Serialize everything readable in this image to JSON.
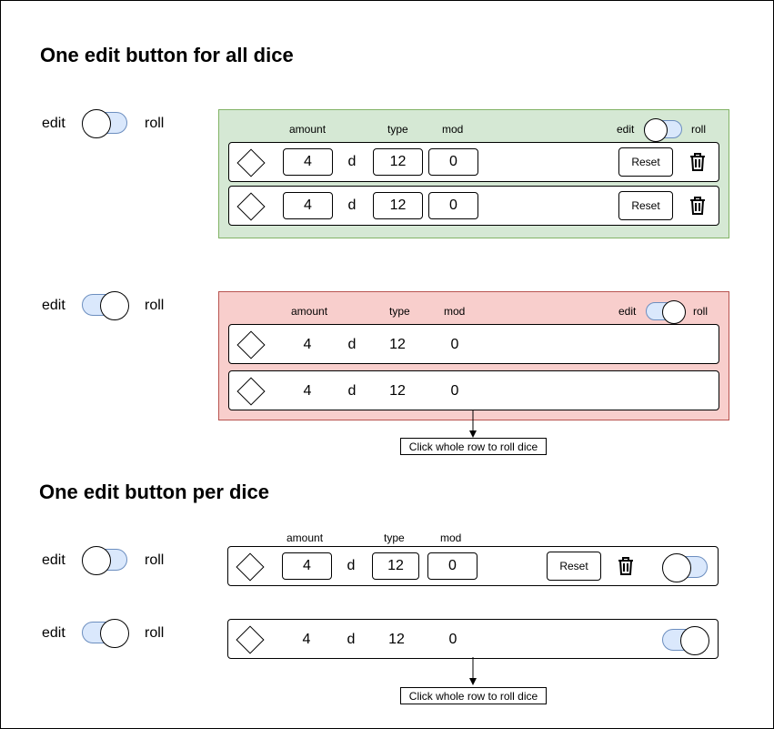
{
  "section1": {
    "title": "One edit button for all dice"
  },
  "section2": {
    "title": "One edit button per dice"
  },
  "toggle_labels": {
    "edit": "edit",
    "roll": "roll"
  },
  "columns": {
    "amount": "amount",
    "type": "type",
    "mod": "mod"
  },
  "dice_row": {
    "amount": "4",
    "separator": "d",
    "type": "12",
    "mod": "0"
  },
  "reset_label": "Reset",
  "note": "Click whole row to roll dice",
  "colors": {
    "edit_panel_bg": "#d5e8d4",
    "edit_panel_border": "#82b366",
    "roll_panel_bg": "#f8cecc",
    "roll_panel_border": "#b85450",
    "toggle_track": "#dae8fc",
    "toggle_border": "#6c8ebf"
  },
  "icons": {
    "row": "diamond-icon",
    "delete": "trash-icon"
  }
}
